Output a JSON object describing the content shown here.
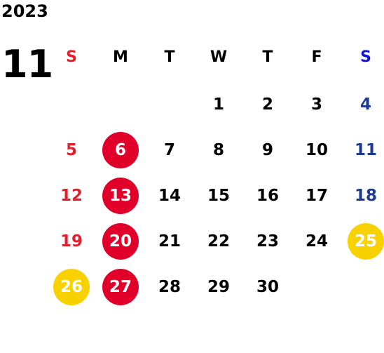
{
  "year": "2023",
  "month": "11",
  "weekdays": [
    "S",
    "M",
    "T",
    "W",
    "T",
    "F",
    "S"
  ],
  "weeks": [
    [
      null,
      null,
      null,
      "1",
      "2",
      "3",
      "4"
    ],
    [
      "5",
      "6",
      "7",
      "8",
      "9",
      "10",
      "11"
    ],
    [
      "12",
      "13",
      "14",
      "15",
      "16",
      "17",
      "18"
    ],
    [
      "19",
      "20",
      "21",
      "22",
      "23",
      "24",
      "25"
    ],
    [
      "26",
      "27",
      "28",
      "29",
      "30",
      null,
      null
    ]
  ],
  "highlighted_days": {
    "red": [
      "6",
      "13",
      "20",
      "27"
    ],
    "yellow": [
      "25",
      "26"
    ]
  },
  "colors": {
    "sunday": "#e0202c",
    "saturday": "#1f3a93",
    "saturday_header": "#1515d6",
    "red_circle": "#e0002a",
    "yellow_circle": "#f8d200",
    "text": "#000000"
  }
}
